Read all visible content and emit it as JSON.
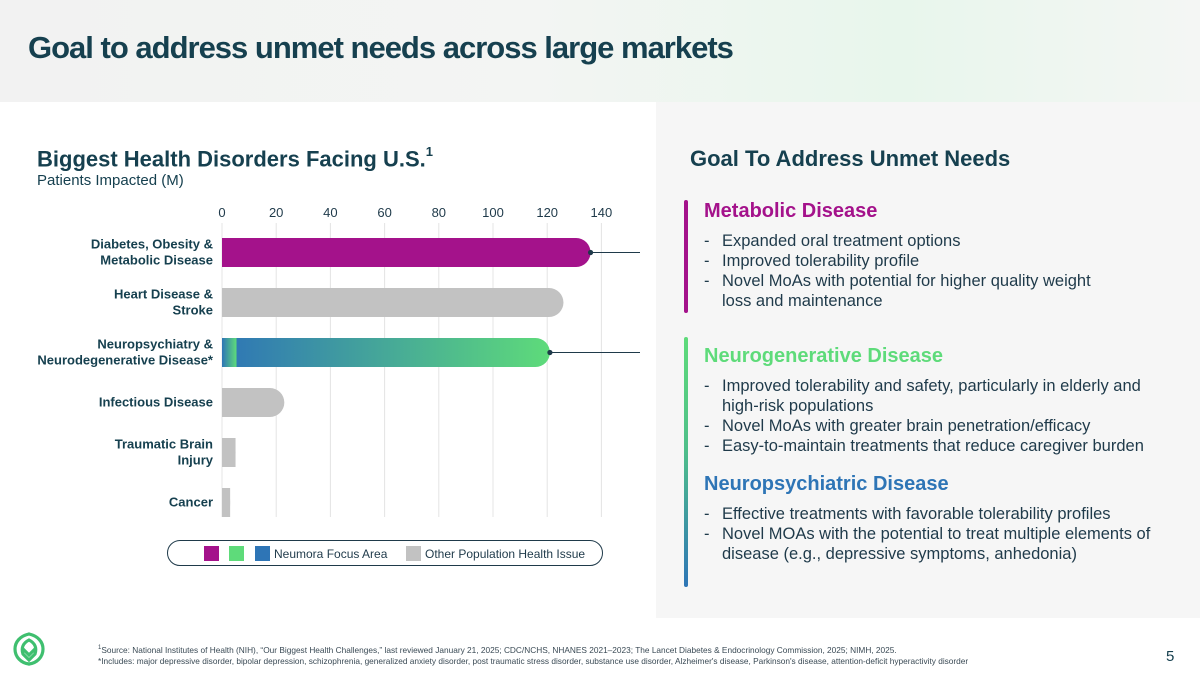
{
  "page": {
    "title": "Goal to address unmet needs across large markets",
    "page_number": "5"
  },
  "chart_data": {
    "type": "bar",
    "orientation": "horizontal",
    "title": "Biggest Health Disorders Facing U.S.",
    "title_superscript": "1",
    "subtitle": "Patients Impacted (M)",
    "xlim": [
      0,
      140
    ],
    "xticks": [
      "0",
      "20",
      "40",
      "60",
      "80",
      "100",
      "120",
      "140"
    ],
    "grid": true,
    "categories": [
      [
        "Diabetes, Obesity &",
        "Metabolic Disease"
      ],
      [
        "Heart Disease &",
        "Stroke"
      ],
      [
        "Neuropsychiatry &",
        "Neurodegenerative Disease*"
      ],
      [
        "Infectious Disease"
      ],
      [
        "Traumatic Brain",
        "Injury"
      ],
      [
        "Cancer"
      ]
    ],
    "values": [
      136,
      126,
      121,
      23,
      5,
      3
    ],
    "bar_styles": [
      "magenta",
      "gray",
      "blue-green",
      "gray",
      "gray",
      "gray"
    ],
    "legend": {
      "focus_label": "Neumora Focus Area",
      "other_label": "Other Population Health Issue"
    }
  },
  "colors": {
    "magenta": "#a4128b",
    "green": "#5edb7a",
    "blue": "#2e75b6",
    "gray": "#c2c2c2",
    "navy": "#16404f"
  },
  "goals": {
    "title": "Goal To Address Unmet Needs",
    "sections": [
      {
        "heading": "Metabolic Disease",
        "bullets": [
          "Expanded oral treatment options",
          "Improved tolerability profile",
          "Novel MoAs with potential for higher quality weight loss and maintenance"
        ]
      },
      {
        "heading": "Neurogenerative Disease",
        "bullets": [
          "Improved tolerability and safety, particularly in elderly and high-risk populations",
          "Novel MoAs with greater brain penetration/efficacy",
          "Easy-to-maintain treatments that reduce caregiver burden"
        ]
      },
      {
        "heading": "Neuropsychiatric Disease",
        "bullets": [
          "Effective treatments with favorable tolerability profiles",
          "Novel MOAs with the potential to treat multiple elements of disease (e.g., depressive symptoms, anhedonia)"
        ]
      }
    ]
  },
  "footnotes": {
    "source_marker": "1",
    "source": "Source: National Institutes of Health (NIH), “Our Biggest Health Challenges,” last reviewed January 21, 2025; CDC/NCHS, NHANES 2021–2023; The Lancet Diabetes & Endocrinology Commission, 2025; NIMH, 2025.",
    "includes": "*Includes: major depressive disorder, bipolar depression, schizophrenia, generalized anxiety disorder, post traumatic stress disorder, substance use disorder, Alzheimer's disease, Parkinson's disease, attention-deficit hyperactivity disorder"
  },
  "logo": {
    "icon": "neumora-logo-icon"
  }
}
